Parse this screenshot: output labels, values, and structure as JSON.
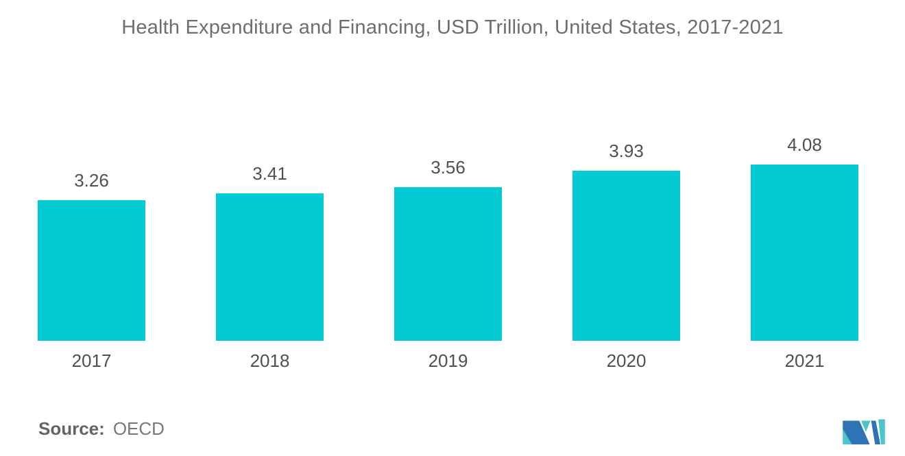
{
  "chart_data": {
    "type": "bar",
    "title": "Health Expenditure and Financing, USD Trillion, United States, 2017-2021",
    "categories": [
      "2017",
      "2018",
      "2019",
      "2020",
      "2021"
    ],
    "values": [
      3.26,
      3.41,
      3.56,
      3.93,
      4.08
    ],
    "value_labels": [
      "3.26",
      "3.41",
      "3.56",
      "3.93",
      "4.08"
    ],
    "xlabel": "",
    "ylabel": "",
    "ylim": [
      0,
      4.5
    ],
    "grid": false,
    "legend": "none",
    "bar_color": "#03cbd3",
    "label_color": "#4f5052",
    "title_color": "#6d6e71"
  },
  "footer": {
    "source_label": "Source:",
    "source_value": "OECD"
  },
  "logo": {
    "name": "mordor-intelligence-logo",
    "blue": "#2d73b5",
    "teal": "#4cc4c9"
  }
}
